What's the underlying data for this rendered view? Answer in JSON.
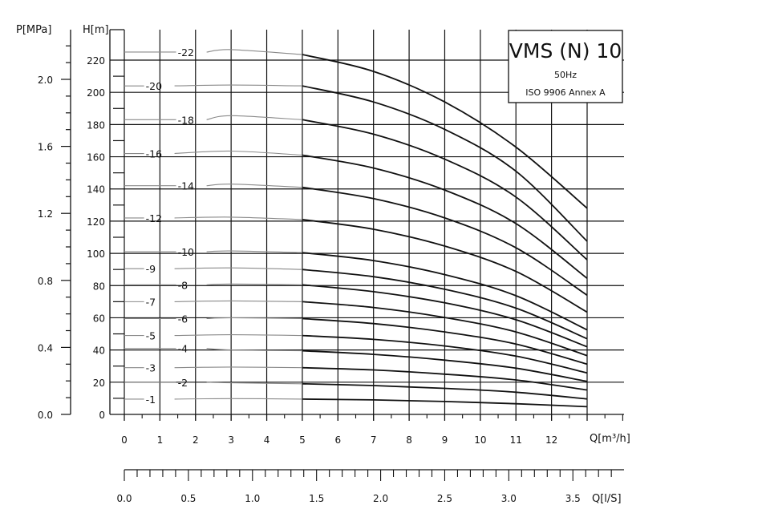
{
  "chart_data": {
    "type": "line",
    "title": "VMS (N) 10",
    "subtitle_lines": [
      "50Hz",
      "ISO 9906 Annex A"
    ],
    "left_axis": {
      "label": "H[m]",
      "ticks": [
        0,
        20,
        40,
        60,
        80,
        100,
        120,
        140,
        160,
        180,
        200,
        220
      ],
      "range": [
        0,
        230
      ]
    },
    "pressure_axis": {
      "label": "P[MPa]",
      "ticks": [
        "0.0",
        "0.4",
        "0.8",
        "1.2",
        "1.6",
        "2.0"
      ],
      "values": [
        0,
        0.4,
        0.8,
        1.2,
        1.6,
        2.0
      ]
    },
    "x_axis": {
      "label": "Q[m³/h]",
      "ticks": [
        0,
        1,
        2,
        3,
        4,
        5,
        6,
        7,
        8,
        9,
        10,
        11,
        12
      ],
      "range": [
        0,
        14
      ]
    },
    "x_axis_ls": {
      "label": "Q[l/S]",
      "ticks": [
        "0.0",
        "0.5",
        "1.0",
        "1.5",
        "2.0",
        "2.5",
        "3.0",
        "3.5"
      ],
      "values": [
        0,
        0.5,
        1.0,
        1.5,
        2.0,
        2.5,
        3.0,
        3.5
      ]
    },
    "operating_range": [
      5,
      13
    ],
    "series": [
      {
        "name": "-1",
        "label_at_x": 0.6,
        "points": [
          [
            0,
            9.5
          ],
          [
            3,
            9.8
          ],
          [
            5,
            9.5
          ],
          [
            7,
            9.0
          ],
          [
            9,
            8.0
          ],
          [
            11,
            6.6
          ],
          [
            13,
            4.8
          ]
        ]
      },
      {
        "name": "-2",
        "label_at_x": 1.5,
        "points": [
          [
            0,
            20
          ],
          [
            3,
            19.6
          ],
          [
            5,
            19
          ],
          [
            7,
            17.9
          ],
          [
            9,
            16.2
          ],
          [
            11,
            13.8
          ],
          [
            13,
            9.6
          ]
        ]
      },
      {
        "name": "-3",
        "label_at_x": 0.6,
        "points": [
          [
            0,
            29
          ],
          [
            3,
            29.4
          ],
          [
            5,
            29
          ],
          [
            7,
            27.6
          ],
          [
            9,
            25
          ],
          [
            11,
            21.4
          ],
          [
            13,
            15.2
          ]
        ]
      },
      {
        "name": "-4",
        "label_at_x": 1.5,
        "points": [
          [
            0,
            41
          ],
          [
            3,
            40
          ],
          [
            5,
            39.5
          ],
          [
            7,
            37.3
          ],
          [
            9,
            33.7
          ],
          [
            11,
            28.7
          ],
          [
            13,
            20.5
          ]
        ]
      },
      {
        "name": "-5",
        "label_at_x": 0.6,
        "points": [
          [
            0,
            49
          ],
          [
            3,
            49.5
          ],
          [
            5,
            49
          ],
          [
            7,
            46.6
          ],
          [
            9,
            42.5
          ],
          [
            11,
            36.2
          ],
          [
            13,
            25.8
          ]
        ]
      },
      {
        "name": "-6",
        "label_at_x": 1.5,
        "points": [
          [
            0,
            59.5
          ],
          [
            3,
            60
          ],
          [
            5,
            59.5
          ],
          [
            7,
            56.4
          ],
          [
            9,
            51.2
          ],
          [
            11,
            43.7
          ],
          [
            13,
            31.2
          ]
        ]
      },
      {
        "name": "-7",
        "label_at_x": 0.6,
        "points": [
          [
            0,
            70
          ],
          [
            3,
            70.5
          ],
          [
            5,
            70
          ],
          [
            7,
            66.4
          ],
          [
            9,
            60.2
          ],
          [
            11,
            51.2
          ],
          [
            13,
            36.5
          ]
        ]
      },
      {
        "name": "-8",
        "label_at_x": 1.5,
        "points": [
          [
            0,
            80.5
          ],
          [
            3,
            81
          ],
          [
            5,
            80.5
          ],
          [
            7,
            76.2
          ],
          [
            9,
            69.3
          ],
          [
            11,
            58.8
          ],
          [
            13,
            42
          ]
        ]
      },
      {
        "name": "-9",
        "label_at_x": 0.6,
        "points": [
          [
            0,
            90.5
          ],
          [
            3,
            91
          ],
          [
            5,
            90
          ],
          [
            7,
            85.5
          ],
          [
            9,
            77.7
          ],
          [
            11,
            66
          ],
          [
            13,
            47
          ]
        ]
      },
      {
        "name": "-10",
        "label_at_x": 1.5,
        "points": [
          [
            0,
            101
          ],
          [
            3,
            101.5
          ],
          [
            5,
            100.5
          ],
          [
            7,
            95.5
          ],
          [
            9,
            86.8
          ],
          [
            11,
            73.7
          ],
          [
            13,
            52.5
          ]
        ]
      },
      {
        "name": "-12",
        "label_at_x": 0.6,
        "points": [
          [
            0,
            122
          ],
          [
            3,
            122.5
          ],
          [
            5,
            121
          ],
          [
            7,
            115
          ],
          [
            9,
            104.5
          ],
          [
            11,
            88.8
          ],
          [
            13,
            63.5
          ]
        ]
      },
      {
        "name": "-14",
        "label_at_x": 1.5,
        "points": [
          [
            0,
            142
          ],
          [
            3,
            143
          ],
          [
            5,
            141
          ],
          [
            7,
            134
          ],
          [
            9,
            122
          ],
          [
            11,
            103.5
          ],
          [
            13,
            74
          ]
        ]
      },
      {
        "name": "-16",
        "label_at_x": 0.6,
        "points": [
          [
            0,
            162
          ],
          [
            3,
            163.5
          ],
          [
            5,
            161
          ],
          [
            7,
            153
          ],
          [
            9,
            139.3
          ],
          [
            11,
            118.5
          ],
          [
            13,
            84.5
          ]
        ]
      },
      {
        "name": "-18",
        "label_at_x": 1.5,
        "points": [
          [
            0,
            183
          ],
          [
            3,
            185.5
          ],
          [
            5,
            183
          ],
          [
            7,
            174
          ],
          [
            9,
            158.5
          ],
          [
            11,
            135
          ],
          [
            13,
            96
          ]
        ]
      },
      {
        "name": "-20",
        "label_at_x": 0.6,
        "points": [
          [
            0,
            204
          ],
          [
            3,
            204.5
          ],
          [
            5,
            204
          ],
          [
            7,
            194
          ],
          [
            9,
            177
          ],
          [
            11,
            151
          ],
          [
            13,
            107.5
          ]
        ]
      },
      {
        "name": "-22",
        "label_at_x": 1.5,
        "points": [
          [
            0,
            225
          ],
          [
            3,
            226.5
          ],
          [
            5,
            223.5
          ],
          [
            7,
            213
          ],
          [
            9,
            194
          ],
          [
            11,
            166
          ],
          [
            13,
            128
          ]
        ]
      }
    ]
  }
}
